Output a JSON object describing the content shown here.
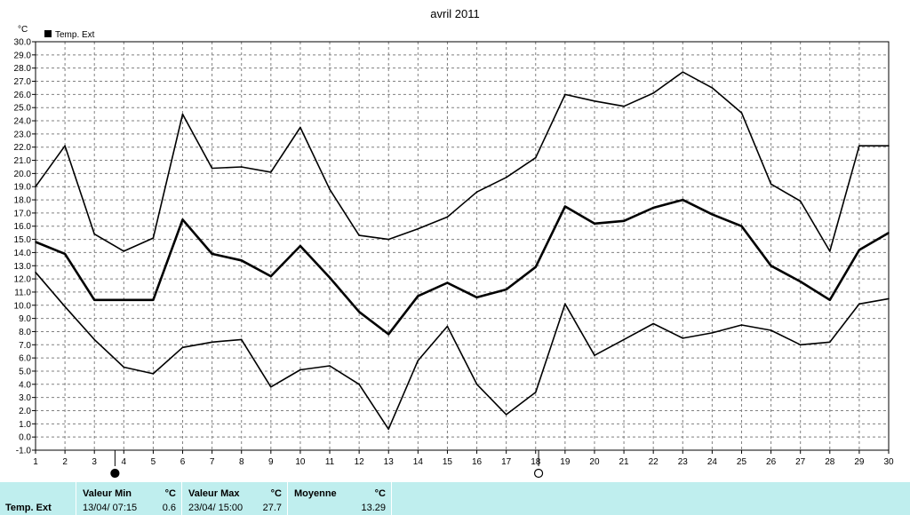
{
  "chart_data": {
    "type": "line",
    "title": "avril 2011",
    "ylabel": "°C",
    "xlabel": "",
    "legend": "Temp. Ext",
    "legend_position": "top-left",
    "grid": true,
    "ylim": [
      -1.0,
      30.0
    ],
    "ystep": 1.0,
    "x": [
      1,
      2,
      3,
      4,
      5,
      6,
      7,
      8,
      9,
      10,
      11,
      12,
      13,
      14,
      15,
      16,
      17,
      18,
      19,
      20,
      21,
      22,
      23,
      24,
      25,
      26,
      27,
      28,
      29,
      30
    ],
    "series": [
      {
        "values": [
          19.0,
          22.1,
          15.4,
          14.1,
          15.1,
          24.5,
          20.4,
          20.5,
          20.1,
          23.5,
          18.8,
          15.3,
          15.0,
          15.8,
          16.7,
          18.6,
          19.7,
          21.2,
          26.0,
          25.5,
          25.1,
          26.1,
          27.7,
          26.5,
          24.6,
          19.2,
          17.9,
          14.1,
          22.1,
          22.1
        ],
        "stroke_width": 1.6
      },
      {
        "values": [
          14.8,
          13.9,
          10.4,
          10.4,
          10.4,
          16.5,
          13.9,
          13.4,
          12.2,
          14.5,
          12.1,
          9.5,
          7.8,
          10.7,
          11.7,
          10.6,
          11.2,
          12.9,
          17.5,
          16.2,
          16.4,
          17.4,
          18.0,
          16.9,
          16.0,
          13.0,
          11.8,
          10.4,
          14.2,
          15.5
        ],
        "stroke_width": 2.6
      },
      {
        "values": [
          12.5,
          9.9,
          7.4,
          5.3,
          4.8,
          6.8,
          7.2,
          7.4,
          3.8,
          5.1,
          5.4,
          4.0,
          0.6,
          5.8,
          8.4,
          4.0,
          1.7,
          3.4,
          10.1,
          6.2,
          7.4,
          8.6,
          7.5,
          7.9,
          8.5,
          8.1,
          7.0,
          7.2,
          10.1,
          10.5
        ],
        "stroke_width": 1.6
      }
    ],
    "markers": [
      {
        "x": 3.7,
        "symbol": "filled-circle"
      },
      {
        "x": 18.1,
        "symbol": "open-circle"
      }
    ]
  },
  "footer": {
    "row_label": "Temp. Ext",
    "min": {
      "label": "Valeur Min",
      "unit": "°C",
      "datetime": "13/04/  07:15",
      "value": "0.6"
    },
    "max": {
      "label": "Valeur Max",
      "unit": "°C",
      "datetime": "23/04/  15:00",
      "value": "27.7"
    },
    "avg": {
      "label": "Moyenne",
      "unit": "°C",
      "value": "13.29"
    }
  },
  "colors": {
    "line": "#000000",
    "grid": "#808080",
    "footer_bg": "#bfeeee",
    "background": "#ffffff"
  }
}
